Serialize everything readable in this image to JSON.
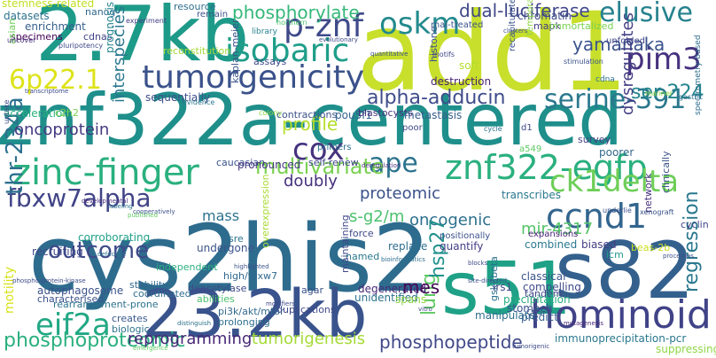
{
  "words": [
    {
      "text": "add1",
      "color": "#c8df2c"
    },
    {
      "text": "znf322a-centered",
      "color": "#1f8f8b"
    },
    {
      "text": "cys2his2",
      "color": "#2e6c8e"
    },
    {
      "text": "2.7kb",
      "color": "#1e9a89"
    },
    {
      "text": "s82",
      "color": "#34608d"
    },
    {
      "text": "23.2kb",
      "color": "#39538c"
    },
    {
      "text": "s51",
      "color": "#1fa187"
    },
    {
      "text": "zinc-finger",
      "color": "#2ab07f"
    },
    {
      "text": "znf322-egfp",
      "color": "#2ab07f"
    },
    {
      "text": "hominoid",
      "color": "#404387"
    },
    {
      "text": "tumorgenicity",
      "color": "#3b528b"
    },
    {
      "text": "isobaric",
      "color": "#1f9e89"
    },
    {
      "text": "p-znf",
      "color": "#3e4a89"
    },
    {
      "text": "oskm",
      "color": "#238a8d"
    },
    {
      "text": "pim3",
      "color": "#46317e"
    },
    {
      "text": "cox",
      "color": "#46337e"
    },
    {
      "text": "ape",
      "color": "#2c738e"
    },
    {
      "text": "ccnd1",
      "color": "#32658e"
    },
    {
      "text": "ck1delta",
      "color": "#6ece58"
    },
    {
      "text": "6p22.1",
      "color": "#dde318"
    },
    {
      "text": "serine-391",
      "color": "#2a788e"
    },
    {
      "text": "elusive",
      "color": "#26828e"
    },
    {
      "text": "fbxw7alpha",
      "color": "#414487"
    },
    {
      "text": "eif2a",
      "color": "#22a884"
    },
    {
      "text": "thr-234a",
      "color": "#2c718e"
    },
    {
      "text": "multivariate",
      "color": "#7ad151"
    },
    {
      "text": "alpha-adducin",
      "color": "#3e4c8a"
    },
    {
      "text": "phosphorylate",
      "color": "#35b779"
    },
    {
      "text": "dual-luciferase",
      "color": "#3f4788"
    },
    {
      "text": "yamanaka",
      "color": "#3a548c"
    },
    {
      "text": "ser-224",
      "color": "#25858e"
    },
    {
      "text": "profile",
      "color": "#b5de2b"
    },
    {
      "text": "oncoprotein",
      "color": "#443a83"
    },
    {
      "text": "proteomic",
      "color": "#3b528b"
    },
    {
      "text": "oncogenic",
      "color": "#2d708e"
    },
    {
      "text": "outcome",
      "color": "#3e4989"
    },
    {
      "text": "phosphoproteomic",
      "color": "#2ab07f"
    },
    {
      "text": "reprogramming",
      "color": "#482878"
    },
    {
      "text": "tumorigenesis",
      "color": "#a5db36"
    },
    {
      "text": "phosphopeptide",
      "color": "#3f4889"
    },
    {
      "text": "lung",
      "color": "#5ec962"
    },
    {
      "text": "regression",
      "color": "#2a788e"
    },
    {
      "text": "hsp27",
      "color": "#20928c"
    },
    {
      "text": "mes",
      "color": "#440154"
    },
    {
      "text": "mir-4317",
      "color": "#54c568"
    },
    {
      "text": "dysregulates",
      "color": "#433e85"
    },
    {
      "text": "interspecies",
      "color": "#2a778e"
    },
    {
      "text": "motility",
      "color": "#d8e219"
    },
    {
      "text": "mass",
      "color": "#2c738e"
    },
    {
      "text": "doubly",
      "color": "#46307e"
    },
    {
      "text": "s-g2/m",
      "color": "#4ac16d"
    },
    {
      "text": "stemness-related",
      "color": "#c2df23"
    },
    {
      "text": "datasets",
      "color": "#2c728e"
    },
    {
      "text": "enrichment",
      "color": "#355f8d"
    },
    {
      "text": "specimens",
      "color": "#440154"
    },
    {
      "text": "cdnas",
      "color": "#414487"
    },
    {
      "text": "nanog",
      "color": "#31688e"
    },
    {
      "text": "asian",
      "color": "#6ece58"
    },
    {
      "text": "resource",
      "color": "#2e6e8e"
    },
    {
      "text": "remain",
      "color": "#3b528b"
    },
    {
      "text": "library",
      "color": "#26828e"
    },
    {
      "text": "chromatin",
      "color": "#3e4a89"
    },
    {
      "text": "rnai-treated",
      "color": "#3b528b"
    },
    {
      "text": "mapk",
      "color": "#433e85"
    },
    {
      "text": "destruction",
      "color": "#481f70"
    },
    {
      "text": "immortalized",
      "color": "#7ad151"
    },
    {
      "text": "unfolded",
      "color": "#404688"
    },
    {
      "text": "evolutionary",
      "color": "#3e4a89"
    },
    {
      "text": "prognosis",
      "color": "#25848e"
    },
    {
      "text": "reconstitution",
      "color": "#a2da37"
    },
    {
      "text": "assays",
      "color": "#3e4a89"
    },
    {
      "text": "sequentially",
      "color": "#3d4e8a"
    },
    {
      "text": "acceleration",
      "color": "#2ab07f"
    },
    {
      "text": "c2h2",
      "color": "#7ad151"
    },
    {
      "text": "kaplan-meier",
      "color": "#3b528b"
    },
    {
      "text": "contractions",
      "color": "#3b528b"
    },
    {
      "text": "pou5f1",
      "color": "#33638d"
    },
    {
      "text": "blastocysts",
      "color": "#46307e"
    },
    {
      "text": "metastasis",
      "color": "#355f8d"
    },
    {
      "text": "histone",
      "color": "#3a548c"
    },
    {
      "text": "soft",
      "color": "#b5de2b"
    },
    {
      "text": "recapitulated",
      "color": "#3b528b"
    },
    {
      "text": "poor",
      "color": "#3e4989"
    },
    {
      "text": "survey",
      "color": "#433e85"
    },
    {
      "text": "poorer",
      "color": "#31688e"
    },
    {
      "text": "caucasian",
      "color": "#3b528b"
    },
    {
      "text": "pronounced",
      "color": "#453781"
    },
    {
      "text": "self-renew",
      "color": "#404688"
    },
    {
      "text": "transcribes",
      "color": "#2a788e"
    },
    {
      "text": "network",
      "color": "#46307e"
    },
    {
      "text": "clinically",
      "color": "#3b528b"
    },
    {
      "text": "cyclin",
      "color": "#404688"
    },
    {
      "text": "icm",
      "color": "#1f988b"
    },
    {
      "text": "combined",
      "color": "#2a788e"
    },
    {
      "text": "biased",
      "color": "#433e85"
    },
    {
      "text": "expansions",
      "color": "#482173"
    },
    {
      "text": "quantify",
      "color": "#433e85"
    },
    {
      "text": "positionally",
      "color": "#3b528b"
    },
    {
      "text": "replace",
      "color": "#2e6e8e"
    },
    {
      "text": "named",
      "color": "#2a788e"
    },
    {
      "text": "force",
      "color": "#3e4989"
    },
    {
      "text": "sre",
      "color": "#2c728e"
    },
    {
      "text": "undergone",
      "color": "#3b528b"
    },
    {
      "text": "corroborating",
      "color": "#1fa188"
    },
    {
      "text": "recruiting",
      "color": "#3e4989"
    },
    {
      "text": "high/fbxw7",
      "color": "#31688e"
    },
    {
      "text": "independent",
      "color": "#2ab07f"
    },
    {
      "text": "stability",
      "color": "#31688e"
    },
    {
      "text": "coordinated",
      "color": "#2e6e8e"
    },
    {
      "text": "autophagosome",
      "color": "#3b528b"
    },
    {
      "text": "rearrangement-prone",
      "color": "#2c728e"
    },
    {
      "text": "characterised",
      "color": "#3b528b"
    },
    {
      "text": "deacetylase",
      "color": "#3e4989"
    },
    {
      "text": "abilities",
      "color": "#4ac16d"
    },
    {
      "text": "pi3k/akt/mtor",
      "color": "#31688e"
    },
    {
      "text": "prolonging",
      "color": "#2e6e8e"
    },
    {
      "text": "creates",
      "color": "#38588c"
    },
    {
      "text": "biologic",
      "color": "#2c728e"
    },
    {
      "text": "overexpression",
      "color": "#a8db34"
    },
    {
      "text": "maintaining",
      "color": "#3e4989"
    },
    {
      "text": "agar",
      "color": "#3b528b"
    },
    {
      "text": "duplications",
      "color": "#3e4989"
    },
    {
      "text": "unidentified",
      "color": "#2c728e"
    },
    {
      "text": "degenerated",
      "color": "#482878"
    },
    {
      "text": "spans",
      "color": "#8fd744"
    },
    {
      "text": "classical",
      "color": "#3a548c"
    },
    {
      "text": "compelling",
      "color": "#3e4a89"
    },
    {
      "text": "tandem",
      "color": "#404688"
    },
    {
      "text": "precipitation",
      "color": "#27ad81"
    },
    {
      "text": "stomach",
      "color": "#3b528b"
    },
    {
      "text": "manipulate",
      "color": "#2e6e8e"
    },
    {
      "text": "predict",
      "color": "#355f8d"
    },
    {
      "text": "immunoprecipitation-pcr",
      "color": "#2a788e"
    },
    {
      "text": "suppressing",
      "color": "#8fd744"
    },
    {
      "text": "gsk3beta",
      "color": "#2c728e"
    },
    {
      "text": "cos-7",
      "color": "#3b528b"
    },
    {
      "text": "irs1",
      "color": "#3e4989"
    },
    {
      "text": "beas-2b",
      "color": "#c8e020"
    },
    {
      "text": "a549",
      "color": "#5ec962"
    },
    {
      "text": "primers",
      "color": "#2e6e8e"
    },
    {
      "text": "pluripotency",
      "color": "#3e4a89"
    },
    {
      "text": "uncover",
      "color": "#46307e"
    },
    {
      "text": "experiment",
      "color": "#433e85"
    },
    {
      "text": "quantitative",
      "color": "#3b528b"
    },
    {
      "text": "motifs",
      "color": "#404688"
    },
    {
      "text": "clusters",
      "color": "#3b528b"
    },
    {
      "text": "northern",
      "color": "#4ac16d"
    },
    {
      "text": "cdna",
      "color": "#2c728e"
    },
    {
      "text": "xenograft",
      "color": "#3b528b"
    },
    {
      "text": "transcriptome",
      "color": "#3e4a89"
    },
    {
      "text": "evidence",
      "color": "#2a788e"
    },
    {
      "text": "colony",
      "color": "#8fd744"
    },
    {
      "text": "cycle",
      "color": "#2c728e"
    },
    {
      "text": "d1",
      "color": "#3e4989"
    },
    {
      "text": "deregulation",
      "color": "#46307e"
    },
    {
      "text": "underlie",
      "color": "#3b528b"
    },
    {
      "text": "developmental",
      "color": "#46307e"
    },
    {
      "text": "labeling",
      "color": "#2c728e"
    },
    {
      "text": "gastric",
      "color": "#2e6e8e"
    },
    {
      "text": "manner",
      "color": "#8fd744"
    },
    {
      "text": "cooperatively",
      "color": "#3b528b"
    },
    {
      "text": "published",
      "color": "#5ec962"
    },
    {
      "text": "modifiers",
      "color": "#3e4989"
    },
    {
      "text": "mutagenesis",
      "color": "#482878"
    },
    {
      "text": "processes",
      "color": "#3b528b"
    },
    {
      "text": "tumorigenic",
      "color": "#3e4989"
    },
    {
      "text": "distinguish",
      "color": "#2c728e"
    },
    {
      "text": "phospho-protein-kinase",
      "color": "#3e4a89"
    },
    {
      "text": "highlighted",
      "color": "#3b528b"
    },
    {
      "text": "bioinformatics",
      "color": "#2e6e8e"
    },
    {
      "text": "blocks",
      "color": "#3e4989"
    },
    {
      "text": "site-directed",
      "color": "#3b528b"
    },
    {
      "text": "defective",
      "color": "#2c728e"
    },
    {
      "text": "vitro",
      "color": "#3e4989"
    },
    {
      "text": "emergence",
      "color": "#5ec962"
    },
    {
      "text": "spectrometry-based",
      "color": "#2e6e8e"
    },
    {
      "text": "temporal-spatial",
      "color": "#8fd744"
    },
    {
      "text": "stimulation",
      "color": "#3b528b"
    },
    {
      "text": "uptake",
      "color": "#3e4989"
    }
  ]
}
